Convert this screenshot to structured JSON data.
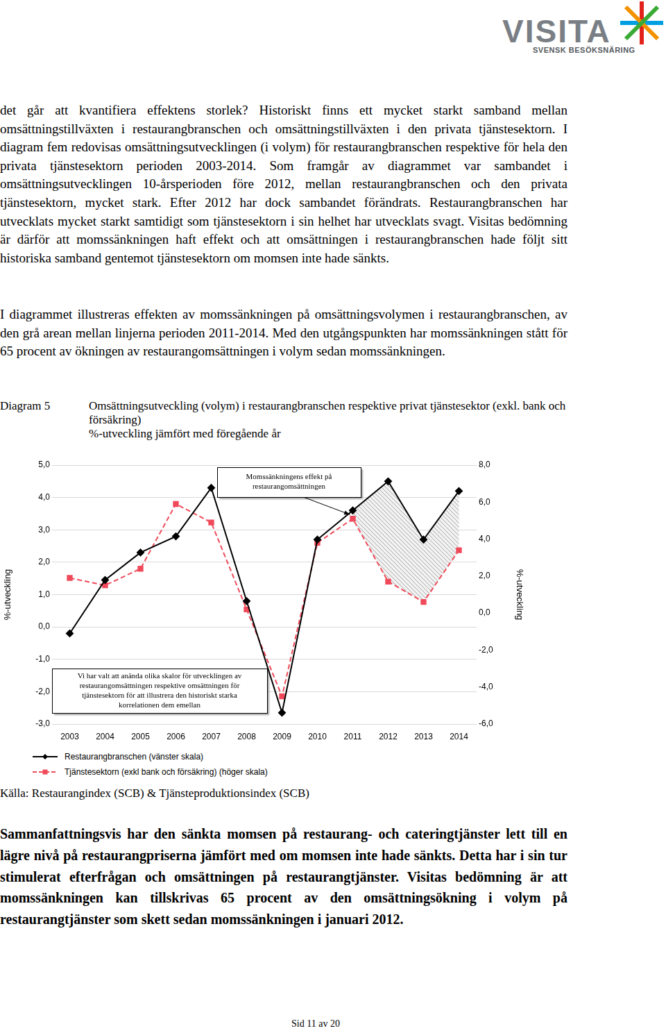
{
  "document": {
    "logo": {
      "name": "VISITA",
      "tagline": "SVENSK BESÖKSNÄRING"
    },
    "paragraphs": [
      "det går att kvantifiera effektens storlek? Historiskt finns ett mycket starkt samband mellan omsättningstillväxten i restaurangbranschen och omsättningstillväxten i den privata tjänstesektorn. I diagram fem redovisas omsättningsutvecklingen (i volym) för restaurangbranschen respektive för hela den privata tjänstesektorn perioden 2003-2014. Som framgår av diagrammet var sambandet i omsättningsutvecklingen 10-årsperioden före 2012, mellan restaurangbranschen och den privata tjänstesektorn, mycket stark. Efter 2012 har dock sambandet förändrats. Restaurangbranschen har utvecklats mycket starkt samtidigt som tjänstesektorn i sin helhet har utvecklats svagt. Visitas bedömning är därför att momssänkningen haft effekt och att omsättningen i restaurangbranschen hade följt sitt historiska samband gentemot tjänstesektorn om momsen inte hade sänkts.",
      "I diagrammet illustreras effekten av momssänkningen på omsättningsvolymen i restaurangbranschen, av den grå arean mellan linjerna perioden 2011-2014. Med den utgångspunkten har momssänkningen stått för 65 procent av ökningen av restaurangomsättningen i volym sedan momssänkningen."
    ],
    "figure_label": "Diagram 5",
    "source": "Källa: Restaurangindex (SCB) & Tjänsteproduktionsindex (SCB)",
    "summary": "Sammanfattningsvis har den sänkta momsen på restaurang- och cateringtjänster lett till en lägre nivå på restaurangpriserna jämfört med om momsen inte hade sänkts. Detta har i sin tur stimulerat efterfrågan och omsättningen på restaurangtjänster. Visitas bedömning är att momssänkningen kan tillskrivas 65 procent av den omsättningsökning i volym på restaurangtjänster som skett sedan momssänkningen i januari 2012.",
    "footer": "Sid 11 av 20"
  },
  "chart_data": {
    "type": "line",
    "title": "Omsättningsutveckling (volym) i restaurangbranschen respektive privat tjänstesektor (exkl. bank och försäkring)",
    "subtitle": "%-utveckling jämfört med föregående år",
    "categories": [
      "2003",
      "2004",
      "2005",
      "2006",
      "2007",
      "2008",
      "2009",
      "2010",
      "2011",
      "2012",
      "2013",
      "2014"
    ],
    "series": [
      {
        "name": "Restaurangbranschen (vänster skala)",
        "color": "#000000",
        "axis": "y",
        "marker": "diamond",
        "line_style": "solid",
        "values": [
          -0.2,
          1.45,
          2.3,
          2.8,
          4.3,
          0.8,
          -2.65,
          2.7,
          3.6,
          4.5,
          2.7,
          4.2
        ]
      },
      {
        "name": "Tjänstesektorn (exkl bank och försäkring) (höger skala)",
        "color": "#f04a5a",
        "axis": "y2",
        "marker": "square",
        "line_style": "dashed",
        "values": [
          1.9,
          1.5,
          2.4,
          5.9,
          4.9,
          0.2,
          -4.5,
          3.8,
          5.1,
          1.7,
          0.6,
          3.4
        ]
      }
    ],
    "ylabel": "%-utveckling",
    "y2label": "%-utveckling",
    "ylim": [
      -3,
      5
    ],
    "yticks": [
      {
        "value": -3,
        "label": "-3,0"
      },
      {
        "value": -2,
        "label": "-2,0"
      },
      {
        "value": -1,
        "label": "-1,0"
      },
      {
        "value": 0,
        "label": "0,0"
      },
      {
        "value": 1,
        "label": "1,0"
      },
      {
        "value": 2,
        "label": "2,0"
      },
      {
        "value": 3,
        "label": "3,0"
      },
      {
        "value": 4,
        "label": "4,0"
      },
      {
        "value": 5,
        "label": "5,0"
      }
    ],
    "y2lim": [
      -6,
      8
    ],
    "y2ticks": [
      {
        "value": -6,
        "label": "-6,0"
      },
      {
        "value": -4,
        "label": "-4,0"
      },
      {
        "value": -2,
        "label": "-2,0"
      },
      {
        "value": 0,
        "label": "0,0"
      },
      {
        "value": 2,
        "label": "2,0"
      },
      {
        "value": 4,
        "label": "4,0"
      },
      {
        "value": 6,
        "label": "6,0"
      },
      {
        "value": 8,
        "label": "8,0"
      }
    ],
    "grid": true,
    "legend": "bottom",
    "annotations": [
      {
        "lines": [
          "Momssänkningens effekt på",
          "restaurangomsättningen"
        ],
        "shaded_from": "2011",
        "shaded_to": "2014"
      },
      {
        "lines": [
          "Vi har valt att anända olika skalor för utvecklingen av",
          "restaurangomsättningen respektive omsättningen för",
          "tjänstesektorn för att illustrera den historiskt starka",
          "korrelationen dem emellan"
        ]
      }
    ]
  }
}
